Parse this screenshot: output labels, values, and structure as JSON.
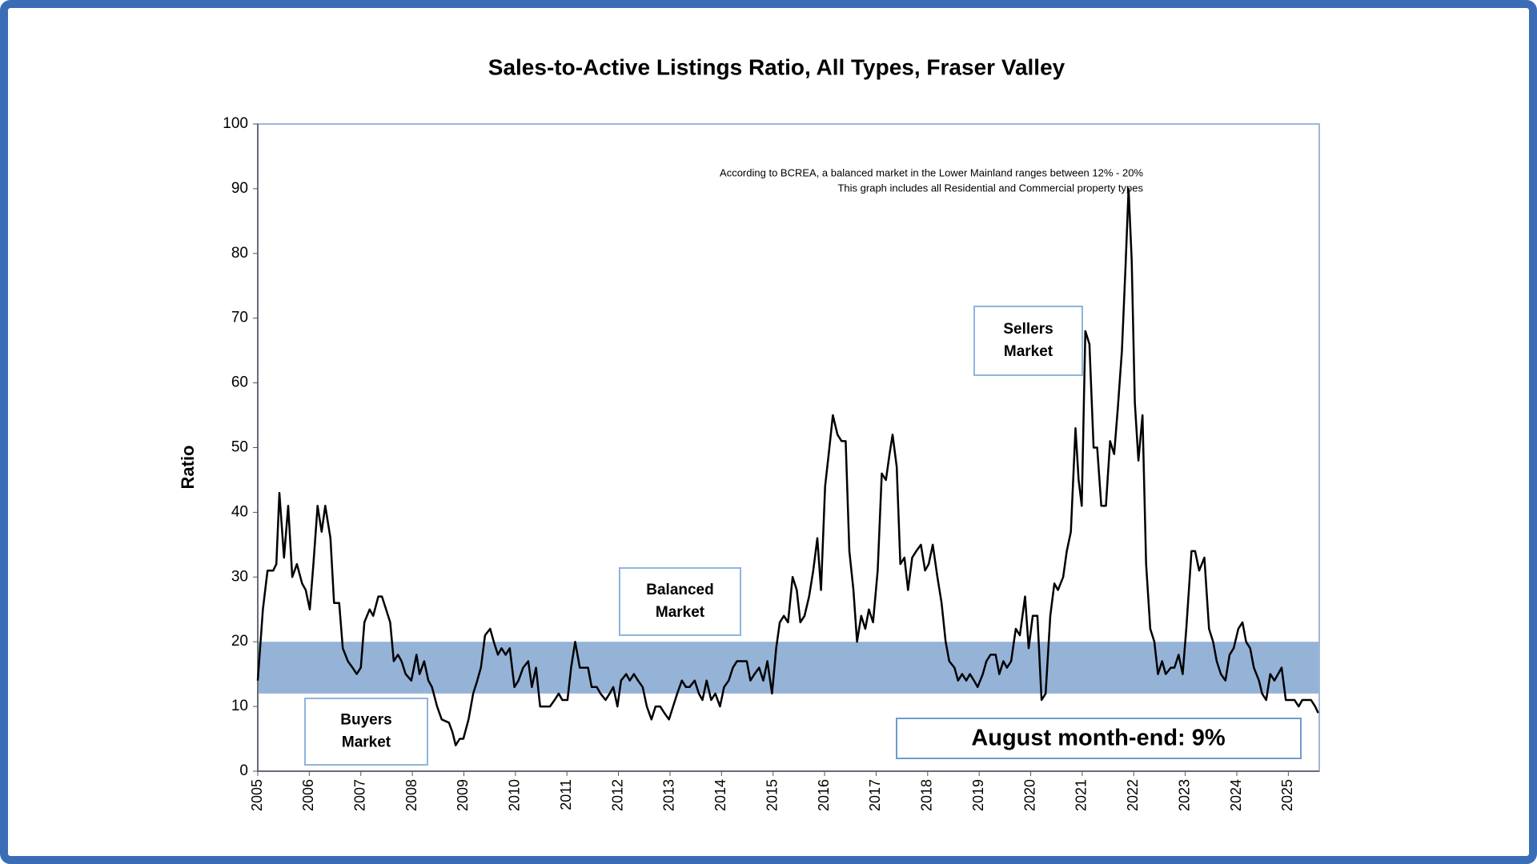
{
  "chart_data": {
    "type": "line",
    "title": "Sales-to-Active Listings Ratio, All Types, Fraser Valley",
    "y_label": "Ratio",
    "annotations": [
      "According to BCREA, a balanced market in the Lower Mainland ranges between 12% - 20%",
      "This graph includes all Residential and Commercial property types"
    ],
    "boxes": [
      {
        "lines": [
          "Sellers",
          "Market"
        ]
      },
      {
        "lines": [
          "Balanced",
          "Market"
        ]
      },
      {
        "lines": [
          "Buyers",
          "Market"
        ]
      }
    ],
    "callout": "August month-end: 9%",
    "band": [
      12,
      20
    ],
    "band_color": "#95b3d7",
    "color": "#000000",
    "xlim": [
      2005,
      2025.6
    ],
    "xticks": [
      2005,
      2006,
      2007,
      2008,
      2009,
      2010,
      2011,
      2012,
      2013,
      2014,
      2015,
      2016,
      2017,
      2018,
      2019,
      2020,
      2021,
      2022,
      2023,
      2024,
      2025
    ],
    "ylim": [
      0,
      100
    ],
    "yticks": [
      0,
      10,
      20,
      30,
      40,
      50,
      60,
      70,
      80,
      90,
      100
    ],
    "x": [
      2005.0,
      2005.1,
      2005.19,
      2005.3,
      2005.36,
      2005.42,
      2005.51,
      2005.59,
      2005.67,
      2005.76,
      2005.86,
      2005.93,
      2006.01,
      2006.08,
      2006.16,
      2006.24,
      2006.31,
      2006.41,
      2006.48,
      2006.58,
      2006.65,
      2006.75,
      2006.84,
      2006.92,
      2007.0,
      2007.07,
      2007.17,
      2007.24,
      2007.34,
      2007.41,
      2007.49,
      2007.57,
      2007.64,
      2007.72,
      2007.79,
      2007.87,
      2007.98,
      2008.08,
      2008.14,
      2008.23,
      2008.31,
      2008.38,
      2008.48,
      2008.57,
      2008.71,
      2008.78,
      2008.84,
      2008.92,
      2008.99,
      2009.09,
      2009.18,
      2009.26,
      2009.33,
      2009.41,
      2009.51,
      2009.58,
      2009.66,
      2009.73,
      2009.81,
      2009.89,
      2009.98,
      2010.06,
      2010.15,
      2010.25,
      2010.32,
      2010.4,
      2010.48,
      2010.57,
      2010.67,
      2010.76,
      2010.84,
      2010.91,
      2011.01,
      2011.08,
      2011.16,
      2011.25,
      2011.33,
      2011.41,
      2011.48,
      2011.58,
      2011.65,
      2011.75,
      2011.83,
      2011.9,
      2011.98,
      2012.05,
      2012.15,
      2012.22,
      2012.3,
      2012.38,
      2012.47,
      2012.55,
      2012.64,
      2012.72,
      2012.81,
      2012.89,
      2012.98,
      2013.06,
      2013.14,
      2013.23,
      2013.31,
      2013.38,
      2013.48,
      2013.56,
      2013.63,
      2013.71,
      2013.8,
      2013.88,
      2013.97,
      2014.05,
      2014.14,
      2014.22,
      2014.3,
      2014.39,
      2014.49,
      2014.56,
      2014.64,
      2014.73,
      2014.81,
      2014.89,
      2014.98,
      2015.06,
      2015.13,
      2015.21,
      2015.29,
      2015.38,
      2015.46,
      2015.53,
      2015.61,
      2015.7,
      2015.78,
      2015.86,
      2015.93,
      2016.01,
      2016.08,
      2016.16,
      2016.25,
      2016.33,
      2016.41,
      2016.48,
      2016.56,
      2016.63,
      2016.71,
      2016.79,
      2016.86,
      2016.94,
      2017.03,
      2017.11,
      2017.19,
      2017.26,
      2017.32,
      2017.4,
      2017.47,
      2017.55,
      2017.62,
      2017.7,
      2017.78,
      2017.87,
      2017.95,
      2018.02,
      2018.1,
      2018.19,
      2018.27,
      2018.35,
      2018.42,
      2018.52,
      2018.59,
      2018.67,
      2018.75,
      2018.82,
      2018.9,
      2018.97,
      2019.07,
      2019.14,
      2019.22,
      2019.32,
      2019.39,
      2019.47,
      2019.54,
      2019.62,
      2019.71,
      2019.79,
      2019.89,
      2019.96,
      2020.04,
      2020.13,
      2020.21,
      2020.29,
      2020.38,
      2020.46,
      2020.53,
      2020.63,
      2020.7,
      2020.78,
      2020.87,
      2020.93,
      2020.99,
      2021.06,
      2021.14,
      2021.22,
      2021.29,
      2021.37,
      2021.46,
      2021.54,
      2021.62,
      2021.69,
      2021.77,
      2021.84,
      2021.9,
      2021.96,
      2022.02,
      2022.09,
      2022.17,
      2022.24,
      2022.32,
      2022.4,
      2022.47,
      2022.55,
      2022.62,
      2022.72,
      2022.79,
      2022.87,
      2022.95,
      2023.02,
      2023.12,
      2023.19,
      2023.27,
      2023.37,
      2023.46,
      2023.54,
      2023.61,
      2023.69,
      2023.78,
      2023.86,
      2023.94,
      2024.03,
      2024.11,
      2024.18,
      2024.26,
      2024.33,
      2024.43,
      2024.49,
      2024.57,
      2024.65,
      2024.73,
      2024.8,
      2024.87,
      2024.95,
      2025.04,
      2025.12,
      2025.2,
      2025.27,
      2025.37,
      2025.44,
      2025.52,
      2025.58
    ],
    "values": [
      14,
      25,
      31,
      31,
      32,
      43,
      33,
      41,
      30,
      32,
      29,
      28,
      25,
      32,
      41,
      37,
      41,
      36,
      26,
      26,
      19,
      17,
      16,
      15,
      16,
      23,
      25,
      24,
      27,
      27,
      25,
      23,
      17,
      18,
      17,
      15,
      14,
      18,
      15,
      17,
      14,
      13,
      10,
      8,
      7.5,
      6,
      4,
      5,
      5,
      8,
      12,
      14,
      16,
      21,
      22,
      20,
      18,
      19,
      18,
      19,
      13,
      14,
      16,
      17,
      13,
      16,
      10,
      10,
      10,
      11,
      12,
      11,
      11,
      16,
      20,
      16,
      16,
      16,
      13,
      13,
      12,
      11,
      12,
      13,
      10,
      14,
      15,
      14,
      15,
      14,
      13,
      10,
      8,
      10,
      10,
      9,
      8,
      10,
      12,
      14,
      13,
      13,
      14,
      12,
      11,
      14,
      11,
      12,
      10,
      13,
      14,
      16,
      17,
      17,
      17,
      14,
      15,
      16,
      14,
      17,
      12,
      19,
      23,
      24,
      23,
      30,
      28,
      23,
      24,
      27,
      31,
      36,
      28,
      44,
      49,
      55,
      52,
      51,
      51,
      34,
      28,
      20,
      24,
      22,
      25,
      23,
      31,
      46,
      45,
      49,
      52,
      47,
      32,
      33,
      28,
      33,
      34,
      35,
      31,
      32,
      35,
      30,
      26,
      20,
      17,
      16,
      14,
      15,
      14,
      15,
      14,
      13,
      15,
      17,
      18,
      18,
      15,
      17,
      16,
      17,
      22,
      21,
      27,
      19,
      24,
      24,
      11,
      12,
      24,
      29,
      28,
      30,
      34,
      37,
      53,
      45,
      41,
      68,
      66,
      50,
      50,
      41,
      41,
      51,
      49,
      56,
      65,
      78,
      90,
      79,
      57,
      48,
      55,
      32,
      22,
      20,
      15,
      17,
      15,
      16,
      16,
      18,
      15,
      22,
      34,
      34,
      31,
      33,
      22,
      20,
      17,
      15,
      14,
      18,
      19,
      22,
      23,
      20,
      19,
      16,
      14,
      12,
      11,
      15,
      14,
      15,
      16,
      11,
      11,
      11,
      10,
      11,
      11,
      11,
      10,
      9
    ]
  }
}
